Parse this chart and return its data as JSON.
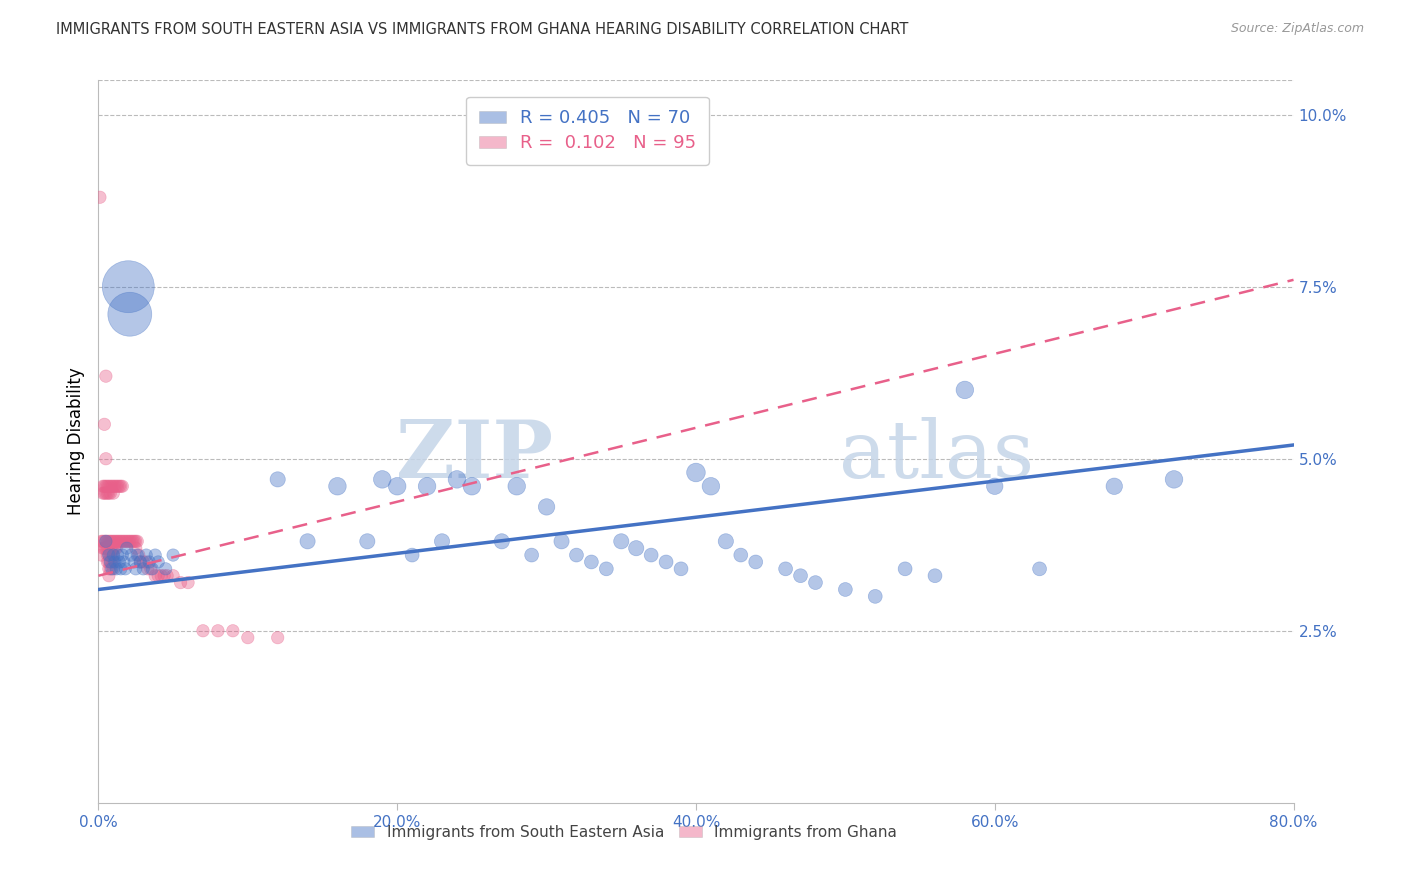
{
  "title": "IMMIGRANTS FROM SOUTH EASTERN ASIA VS IMMIGRANTS FROM GHANA HEARING DISABILITY CORRELATION CHART",
  "source": "Source: ZipAtlas.com",
  "ylabel": "Hearing Disability",
  "watermark_zip": "ZIP",
  "watermark_atlas": "atlas",
  "series1": {
    "label": "Immigrants from South Eastern Asia",
    "R": "0.405",
    "N": "70",
    "color": "#7bafd4",
    "line_color": "#2255aa",
    "x": [
      0.005,
      0.007,
      0.008,
      0.009,
      0.01,
      0.011,
      0.012,
      0.013,
      0.014,
      0.015,
      0.016,
      0.017,
      0.018,
      0.019,
      0.02,
      0.021,
      0.022,
      0.024,
      0.025,
      0.026,
      0.028,
      0.03,
      0.032,
      0.034,
      0.036,
      0.038,
      0.04,
      0.045,
      0.05,
      0.12,
      0.14,
      0.16,
      0.18,
      0.19,
      0.2,
      0.21,
      0.22,
      0.23,
      0.24,
      0.25,
      0.27,
      0.28,
      0.29,
      0.3,
      0.31,
      0.32,
      0.33,
      0.34,
      0.35,
      0.36,
      0.37,
      0.38,
      0.39,
      0.4,
      0.41,
      0.42,
      0.43,
      0.44,
      0.46,
      0.47,
      0.48,
      0.5,
      0.52,
      0.54,
      0.56,
      0.58,
      0.6,
      0.63,
      0.68,
      0.72
    ],
    "y": [
      0.038,
      0.036,
      0.035,
      0.034,
      0.036,
      0.035,
      0.034,
      0.036,
      0.035,
      0.034,
      0.036,
      0.035,
      0.034,
      0.037,
      0.075,
      0.071,
      0.036,
      0.035,
      0.034,
      0.036,
      0.035,
      0.034,
      0.036,
      0.035,
      0.034,
      0.036,
      0.035,
      0.034,
      0.036,
      0.047,
      0.038,
      0.046,
      0.038,
      0.047,
      0.046,
      0.036,
      0.046,
      0.038,
      0.047,
      0.046,
      0.038,
      0.046,
      0.036,
      0.043,
      0.038,
      0.036,
      0.035,
      0.034,
      0.038,
      0.037,
      0.036,
      0.035,
      0.034,
      0.048,
      0.046,
      0.038,
      0.036,
      0.035,
      0.034,
      0.033,
      0.032,
      0.031,
      0.03,
      0.034,
      0.033,
      0.06,
      0.046,
      0.034,
      0.046,
      0.047
    ],
    "size": [
      20,
      20,
      20,
      20,
      20,
      20,
      20,
      20,
      20,
      20,
      20,
      20,
      20,
      20,
      350,
      250,
      20,
      20,
      20,
      20,
      20,
      20,
      20,
      20,
      20,
      20,
      20,
      20,
      20,
      30,
      30,
      40,
      30,
      40,
      40,
      25,
      40,
      30,
      40,
      40,
      30,
      40,
      25,
      35,
      30,
      25,
      25,
      25,
      30,
      30,
      25,
      25,
      25,
      45,
      40,
      30,
      25,
      25,
      25,
      25,
      25,
      25,
      25,
      25,
      25,
      40,
      35,
      25,
      35,
      40
    ]
  },
  "series2": {
    "label": "Immigrants from Ghana",
    "R": "0.102",
    "N": "95",
    "color": "#e8608a",
    "line_color": "#cc3366",
    "x": [
      0.001,
      0.002,
      0.002,
      0.003,
      0.003,
      0.003,
      0.003,
      0.004,
      0.004,
      0.004,
      0.004,
      0.004,
      0.005,
      0.005,
      0.005,
      0.005,
      0.005,
      0.005,
      0.006,
      0.006,
      0.006,
      0.006,
      0.006,
      0.006,
      0.007,
      0.007,
      0.007,
      0.007,
      0.007,
      0.007,
      0.007,
      0.007,
      0.008,
      0.008,
      0.008,
      0.008,
      0.008,
      0.008,
      0.008,
      0.009,
      0.009,
      0.009,
      0.009,
      0.009,
      0.01,
      0.01,
      0.01,
      0.01,
      0.01,
      0.01,
      0.01,
      0.011,
      0.011,
      0.011,
      0.012,
      0.012,
      0.012,
      0.013,
      0.013,
      0.014,
      0.014,
      0.015,
      0.015,
      0.016,
      0.016,
      0.017,
      0.018,
      0.019,
      0.02,
      0.021,
      0.022,
      0.023,
      0.024,
      0.025,
      0.025,
      0.026,
      0.027,
      0.028,
      0.03,
      0.032,
      0.033,
      0.035,
      0.038,
      0.04,
      0.042,
      0.044,
      0.046,
      0.05,
      0.055,
      0.06,
      0.07,
      0.08,
      0.09,
      0.1,
      0.12
    ],
    "y": [
      0.088,
      0.038,
      0.036,
      0.046,
      0.045,
      0.038,
      0.037,
      0.055,
      0.046,
      0.045,
      0.038,
      0.037,
      0.062,
      0.05,
      0.046,
      0.045,
      0.038,
      0.037,
      0.046,
      0.045,
      0.038,
      0.037,
      0.036,
      0.035,
      0.046,
      0.045,
      0.038,
      0.037,
      0.036,
      0.035,
      0.034,
      0.033,
      0.046,
      0.045,
      0.038,
      0.037,
      0.036,
      0.035,
      0.034,
      0.046,
      0.038,
      0.037,
      0.036,
      0.035,
      0.046,
      0.045,
      0.038,
      0.037,
      0.036,
      0.035,
      0.034,
      0.046,
      0.038,
      0.037,
      0.046,
      0.038,
      0.037,
      0.046,
      0.038,
      0.046,
      0.038,
      0.046,
      0.038,
      0.046,
      0.038,
      0.038,
      0.038,
      0.038,
      0.038,
      0.038,
      0.038,
      0.038,
      0.038,
      0.038,
      0.037,
      0.038,
      0.036,
      0.035,
      0.035,
      0.035,
      0.034,
      0.034,
      0.033,
      0.033,
      0.033,
      0.033,
      0.033,
      0.033,
      0.032,
      0.032,
      0.025,
      0.025,
      0.025,
      0.024,
      0.024
    ],
    "size": [
      20,
      20,
      20,
      20,
      20,
      20,
      20,
      20,
      20,
      20,
      20,
      20,
      20,
      20,
      20,
      20,
      20,
      20,
      20,
      20,
      20,
      20,
      20,
      20,
      20,
      20,
      20,
      20,
      20,
      20,
      20,
      20,
      20,
      20,
      20,
      20,
      20,
      20,
      20,
      20,
      20,
      20,
      20,
      20,
      20,
      20,
      20,
      20,
      20,
      20,
      20,
      20,
      20,
      20,
      20,
      20,
      20,
      20,
      20,
      20,
      20,
      20,
      20,
      20,
      20,
      20,
      20,
      20,
      20,
      20,
      20,
      20,
      20,
      20,
      20,
      20,
      20,
      20,
      20,
      20,
      20,
      20,
      20,
      20,
      20,
      20,
      20,
      20,
      20,
      20,
      20,
      20,
      20,
      20,
      20
    ]
  },
  "trend1_x": [
    0.0,
    0.8
  ],
  "trend1_y": [
    0.031,
    0.052
  ],
  "trend2_x": [
    0.0,
    0.8
  ],
  "trend2_y": [
    0.033,
    0.076
  ],
  "xlim": [
    0.0,
    0.8
  ],
  "ylim": [
    0.0,
    0.105
  ],
  "xticks": [
    0.0,
    0.2,
    0.4,
    0.6,
    0.8
  ],
  "xticklabels": [
    "0.0%",
    "20.0%",
    "40.0%",
    "60.0%",
    "80.0%"
  ],
  "yticks_right": [
    0.025,
    0.05,
    0.075,
    0.1
  ],
  "yticklabels_right": [
    "2.5%",
    "5.0%",
    "7.5%",
    "10.0%"
  ],
  "blue_color": "#4472c4",
  "pink_color": "#e8608a",
  "title_color": "#333333",
  "axis_color": "#4472c4",
  "grid_color": "#bbbbbb"
}
